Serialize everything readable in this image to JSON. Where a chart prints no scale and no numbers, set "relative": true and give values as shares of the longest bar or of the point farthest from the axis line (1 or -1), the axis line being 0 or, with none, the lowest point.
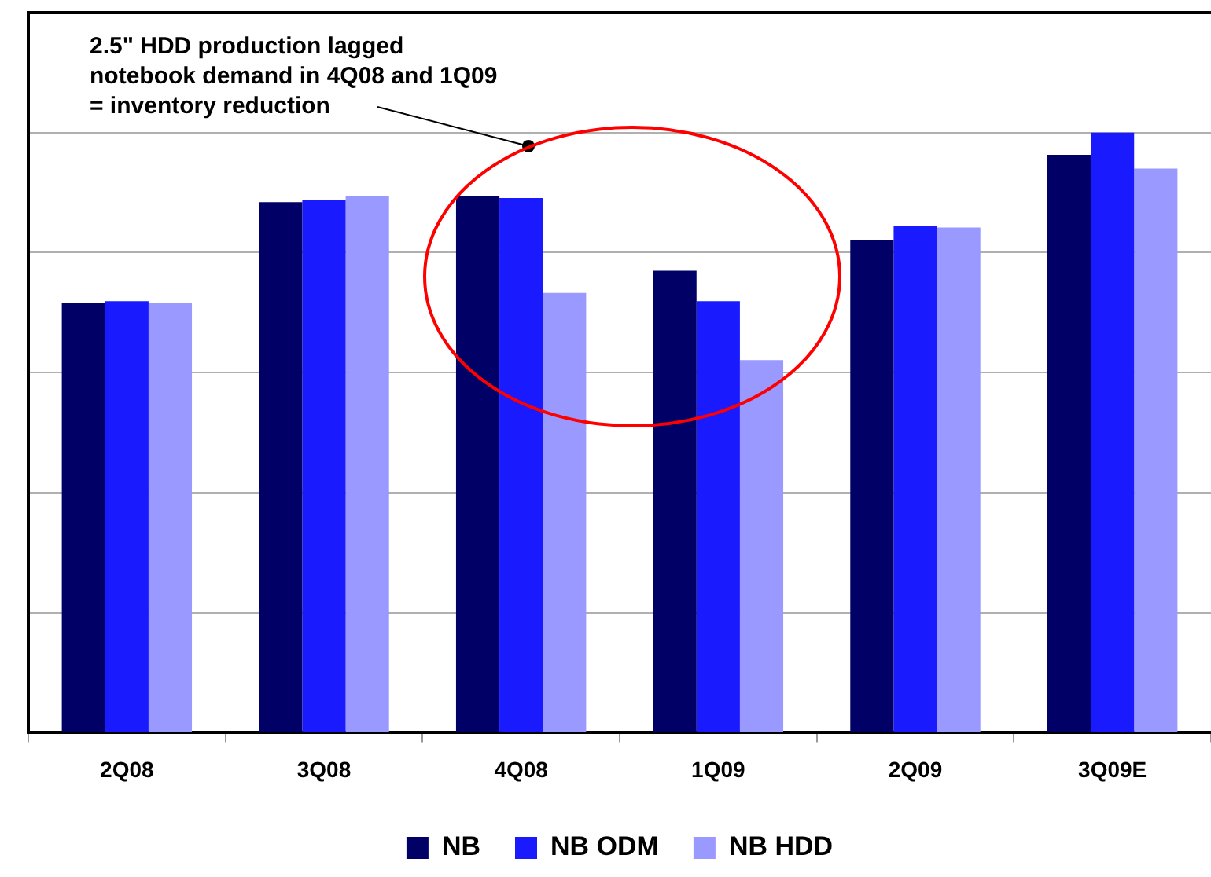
{
  "chart_data": {
    "type": "bar",
    "relative": true,
    "grid": "y",
    "legend": "bottom",
    "categories": [
      "2Q08",
      "3Q08",
      "4Q08",
      "1Q09",
      "2Q09",
      "3Q09E"
    ],
    "series": [
      {
        "name": "NB",
        "color": "#000066",
        "values": [
          0.716,
          0.884,
          0.895,
          0.77,
          0.821,
          0.963
        ]
      },
      {
        "name": "NB ODM",
        "color": "#1a1aff",
        "values": [
          0.719,
          0.888,
          0.891,
          0.719,
          0.844,
          1
        ]
      },
      {
        "name": "NB HDD",
        "color": "#9999ff",
        "values": [
          0.716,
          0.895,
          0.733,
          0.621,
          0.842,
          0.94
        ]
      }
    ],
    "annotations": [
      "2.5\" HDD production lagged\nnotebook demand in 4Q08 and 1Q09\n= inventory reduction"
    ]
  }
}
